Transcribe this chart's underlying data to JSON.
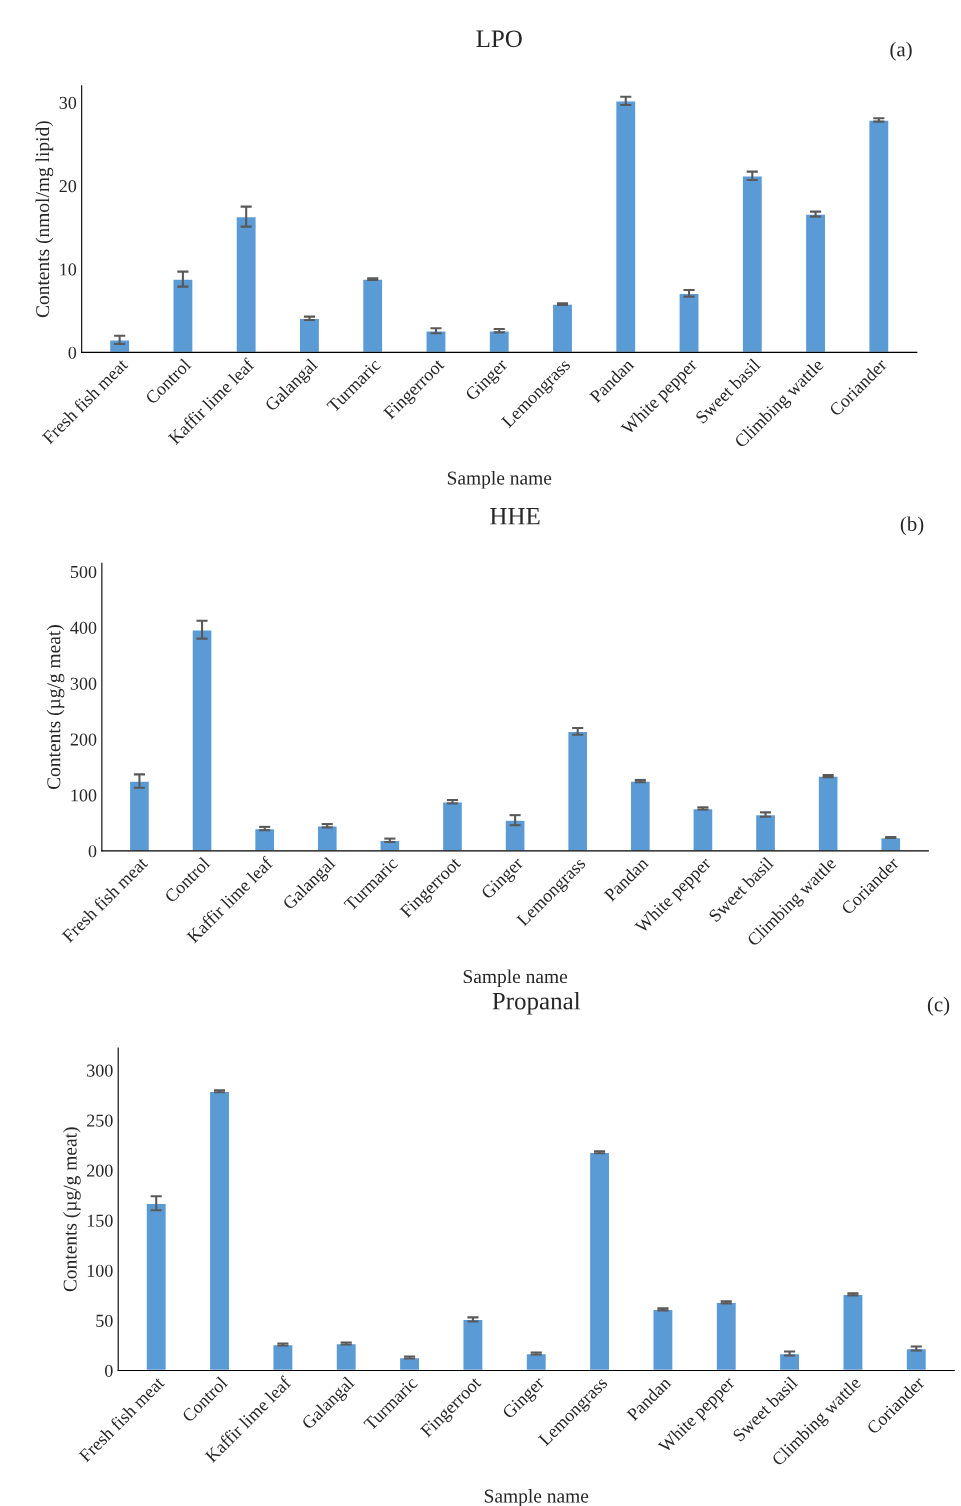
{
  "chart_data": [
    {
      "type": "bar",
      "title": "LPO",
      "xlabel": "Sample name",
      "ylabel": "Contents (nmol/mg lipid)",
      "annotations": [
        "(a)"
      ],
      "categories": [
        "Fresh fish meat",
        "Control",
        "Kaffir lime leaf",
        "Galangal",
        "Turmaric",
        "Fingerroot",
        "Ginger",
        "Lemongrass",
        "Pandan",
        "White pepper",
        "Sweet basil",
        "Climbing wattle",
        "Coriander"
      ],
      "series": [
        {
          "color": "#5b9bd5",
          "values": [
            1.5,
            8.8,
            16.3,
            4.1,
            8.8,
            2.6,
            2.6,
            5.8,
            30.2,
            7.1,
            21.2,
            16.6,
            27.9
          ],
          "errors": [
            0.5,
            0.9,
            1.2,
            0.2,
            0.1,
            0.3,
            0.2,
            0.1,
            0.5,
            0.4,
            0.5,
            0.3,
            0.2
          ]
        }
      ],
      "ylim": [
        0,
        32
      ],
      "yticks": [
        0,
        10,
        20,
        30
      ],
      "grid": false,
      "legend": false
    },
    {
      "type": "bar",
      "title": "HHE",
      "xlabel": "Sample name",
      "ylabel": "Contents (µg/g meat)",
      "annotations": [
        "(b)"
      ],
      "categories": [
        "Fresh fish meat",
        "Control",
        "Kaffir lime leaf",
        "Galangal",
        "Turmaric",
        "Fingerroot",
        "Ginger",
        "Lemongrass",
        "Pandan",
        "White pepper",
        "Sweet basil",
        "Climbing wattle",
        "Coriander"
      ],
      "series": [
        {
          "color": "#5b9bd5",
          "values": [
            125,
            396,
            40,
            45,
            19,
            88,
            55,
            214,
            125,
            76,
            65,
            134,
            24
          ],
          "errors": [
            12,
            16,
            3,
            3,
            3,
            3,
            9,
            6,
            2,
            2,
            4,
            2,
            1
          ]
        }
      ],
      "ylim": [
        0,
        515
      ],
      "yticks": [
        0,
        100,
        200,
        300,
        400,
        500
      ],
      "grid": false,
      "legend": false
    },
    {
      "type": "bar",
      "title": "Propanal",
      "xlabel": "Sample name",
      "ylabel": "Contents (µg/g meat)",
      "annotations": [
        "(c)"
      ],
      "categories": [
        "Fresh fish meat",
        "Control",
        "Kaffir lime leaf",
        "Galangal",
        "Turmaric",
        "Fingerroot",
        "Ginger",
        "Lemongrass",
        "Pandan",
        "White pepper",
        "Sweet basil",
        "Climbing wattle",
        "Coriander"
      ],
      "series": [
        {
          "color": "#5b9bd5",
          "values": [
            167,
            279,
            26,
            27,
            13,
            51,
            17,
            218,
            61,
            68,
            17,
            76,
            22
          ],
          "errors": [
            7,
            1,
            1,
            1,
            1,
            2,
            1,
            1,
            1,
            1,
            2,
            1,
            2
          ]
        }
      ],
      "ylim": [
        0,
        322
      ],
      "yticks": [
        0,
        50,
        100,
        150,
        200,
        250,
        300
      ],
      "grid": false,
      "legend": false
    }
  ]
}
